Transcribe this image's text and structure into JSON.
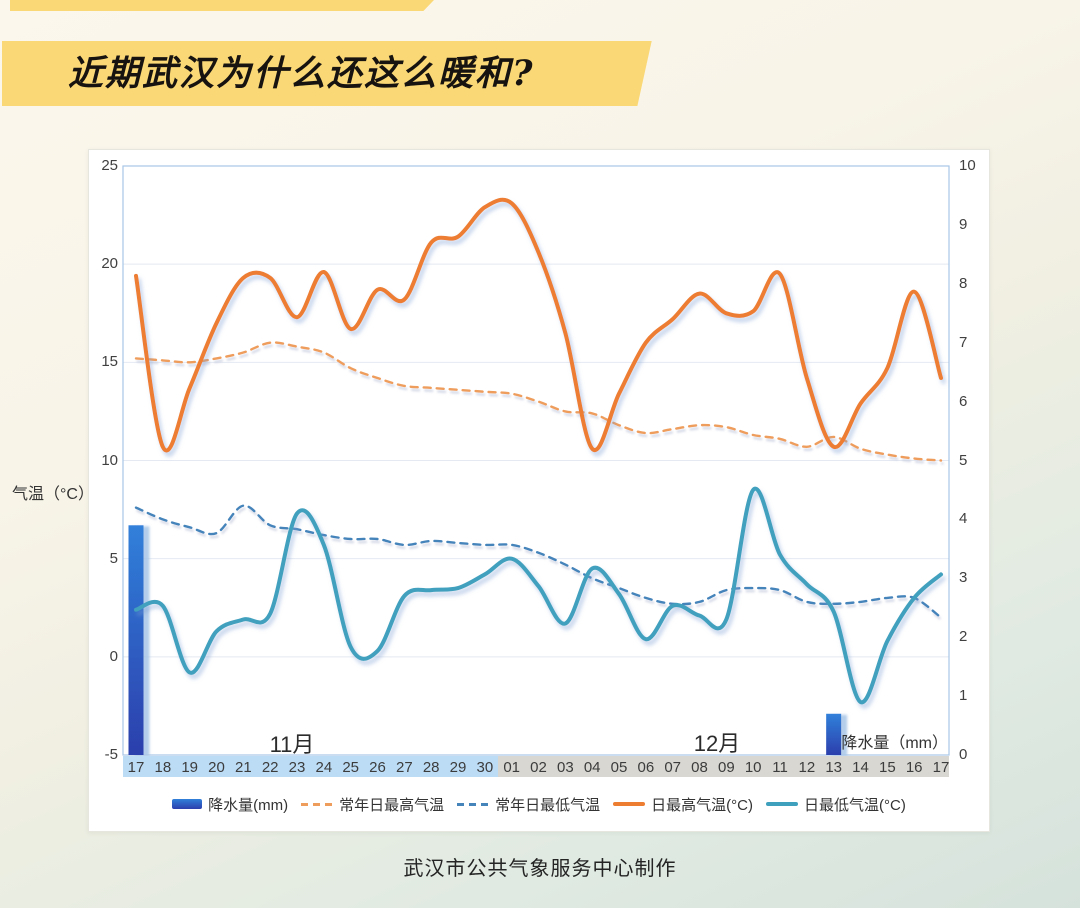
{
  "page": {
    "title": "近期武汉为什么还这么暖和?",
    "footer": "武汉市公共气象服务中心制作"
  },
  "colors": {
    "banner_yellow": "#fad876",
    "card_border": "#e6e6df",
    "plot_frame": "#a8c6e6",
    "gridline": "#e4e9f2",
    "nov_strip": "#bcdcf6",
    "dec_strip": "#d8d7d2",
    "bar_top": "#3080da",
    "bar_bottom": "#2c3fac",
    "normal_max_orange": "#ef9d5c",
    "normal_min_blue": "#4584bb",
    "daily_max_orange": "#ed7d31",
    "daily_min_teal": "#3fa0bd"
  },
  "chart_data": {
    "type": "line",
    "subtype": "dual-axis line and bar, smoothed curves",
    "left_axis": {
      "label": "气温（°C）",
      "ticks": [
        "25",
        "20",
        "15",
        "10",
        "5",
        "0",
        "-5"
      ],
      "range": [
        -5,
        25
      ],
      "grid": true
    },
    "right_axis": {
      "label": "降水量（mm）",
      "ticks": [
        "10",
        "9",
        "8",
        "7",
        "6",
        "5",
        "4",
        "3",
        "2",
        "1",
        "0"
      ],
      "range": [
        0,
        10
      ]
    },
    "x": {
      "nov_label": "11月",
      "dec_label": "12月",
      "nov_days": [
        "17",
        "18",
        "19",
        "20",
        "21",
        "22",
        "23",
        "24",
        "25",
        "26",
        "27",
        "28",
        "29",
        "30"
      ],
      "dec_days": [
        "01",
        "02",
        "03",
        "04",
        "05",
        "06",
        "07",
        "08",
        "09",
        "10",
        "11",
        "12",
        "13",
        "14",
        "15",
        "16",
        "17"
      ]
    },
    "legend_position": "bottom-center",
    "series": [
      {
        "name": "降水量(mm)",
        "type": "bar",
        "axis": "right",
        "style": "bar",
        "color": "#2e75c8",
        "values": [
          3.9,
          0,
          0,
          0,
          0,
          0,
          0,
          0,
          0,
          0,
          0,
          0,
          0,
          0,
          0,
          0,
          0,
          0,
          0,
          0,
          0,
          0,
          0,
          0,
          0,
          0,
          0.7,
          0,
          0,
          0,
          0
        ]
      },
      {
        "name": "常年日最高气温",
        "type": "line",
        "axis": "left",
        "style": "dashed",
        "color": "#ef9d5c",
        "values": [
          15.2,
          15.1,
          15.0,
          15.2,
          15.5,
          16.0,
          15.8,
          15.5,
          14.7,
          14.2,
          13.8,
          13.7,
          13.6,
          13.5,
          13.4,
          13.0,
          12.5,
          12.4,
          11.8,
          11.4,
          11.6,
          11.8,
          11.7,
          11.3,
          11.1,
          10.7,
          11.2,
          10.6,
          10.3,
          10.1,
          10.0
        ]
      },
      {
        "name": "常年日最低气温",
        "type": "line",
        "axis": "left",
        "style": "dashed",
        "color": "#4584bb",
        "values": [
          7.6,
          7.0,
          6.6,
          6.3,
          7.7,
          6.7,
          6.5,
          6.2,
          6.0,
          6.0,
          5.7,
          5.9,
          5.8,
          5.7,
          5.7,
          5.3,
          4.7,
          4.0,
          3.5,
          3.0,
          2.7,
          2.8,
          3.4,
          3.5,
          3.4,
          2.8,
          2.7,
          2.8,
          3.0,
          3.0,
          2.0
        ]
      },
      {
        "name": "日最高气温(°C)",
        "type": "line",
        "axis": "left",
        "style": "solid",
        "color": "#ed7d31",
        "values": [
          19.4,
          10.7,
          13.7,
          17.0,
          19.3,
          19.3,
          17.3,
          19.6,
          16.7,
          18.7,
          18.2,
          21.1,
          21.4,
          22.9,
          23.1,
          20.6,
          16.5,
          10.6,
          13.4,
          16.0,
          17.2,
          18.5,
          17.5,
          17.6,
          19.5,
          14.2,
          10.7,
          12.9,
          14.7,
          18.6,
          14.2
        ]
      },
      {
        "name": "日最低气温(°C)",
        "type": "line",
        "axis": "left",
        "style": "solid",
        "color": "#3fa0bd",
        "values": [
          2.4,
          2.6,
          -0.8,
          1.3,
          1.9,
          2.2,
          7.3,
          5.7,
          0.5,
          0.3,
          3.1,
          3.4,
          3.5,
          4.2,
          5.0,
          3.6,
          1.7,
          4.5,
          3.2,
          0.9,
          2.6,
          2.1,
          1.9,
          8.5,
          5.2,
          3.7,
          2.3,
          -2.3,
          0.8,
          3.0,
          4.2
        ]
      }
    ]
  }
}
